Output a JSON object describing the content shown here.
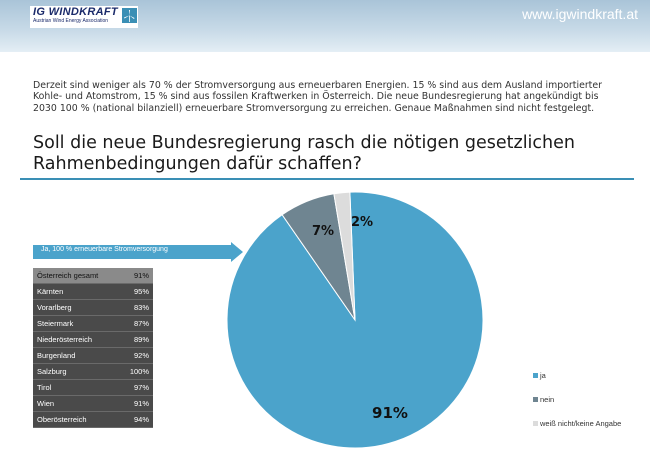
{
  "header": {
    "logo_title": "IG WINDKRAFT",
    "logo_subtitle": "Austrian Wind Energy Association",
    "url": "www.igwindkraft.at"
  },
  "intro_text": "Derzeit sind weniger als 70 % der Stromversorgung aus erneuerbaren Energien. 15 % sind aus dem Ausland importierter Kohle- und Atomstrom, 15 % sind aus fossilen Kraftwerken in Österreich. Die neue Bundesregierung hat angekündigt bis 2030 100 % (national bilanziell) erneuerbare Stromversorgung zu erreichen. Genaue Maßnahmen sind nicht festgelegt.",
  "question": "Soll die neue Bundesregierung rasch die nötigen gesetzlichen Rahmenbedingungen dafür schaffen?",
  "callout_label": "Ja, 100 % erneuerbare Stromversorgung",
  "regions": [
    {
      "name": "Österreich gesamt",
      "value": "91%"
    },
    {
      "name": "Kärnten",
      "value": "95%"
    },
    {
      "name": "Vorarlberg",
      "value": "83%"
    },
    {
      "name": "Steiermark",
      "value": "87%"
    },
    {
      "name": "Niederösterreich",
      "value": "89%"
    },
    {
      "name": "Burgenland",
      "value": "92%"
    },
    {
      "name": "Salzburg",
      "value": "100%"
    },
    {
      "name": "Tirol",
      "value": "97%"
    },
    {
      "name": "Wien",
      "value": "91%"
    },
    {
      "name": "Oberösterreich",
      "value": "94%"
    }
  ],
  "colors": {
    "ja": "#4ba3cb",
    "nein": "#6f8591",
    "weiss_nicht": "#dcdcdc",
    "accent": "#3a8fb5"
  },
  "chart_data": {
    "type": "pie",
    "categories": [
      "ja",
      "nein",
      "weiß nicht/keine Angabe"
    ],
    "values": [
      91,
      7,
      2
    ],
    "labels": [
      "91%",
      "7%",
      "2%"
    ],
    "legend": [
      "ja",
      "nein",
      "weiß nicht/keine Angabe"
    ],
    "legend_position": "right"
  }
}
